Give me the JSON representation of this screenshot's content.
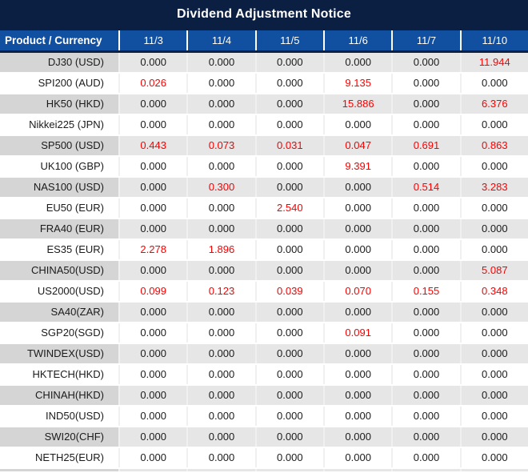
{
  "title": "Dividend Adjustment Notice",
  "table": {
    "header": {
      "product_col": "Product / Currency",
      "dates": [
        "11/3",
        "11/4",
        "11/5",
        "11/6",
        "11/7",
        "11/10"
      ]
    },
    "rows": [
      {
        "label": "DJ30 (USD)",
        "values": [
          "0.000",
          "0.000",
          "0.000",
          "0.000",
          "0.000",
          "11.944"
        ],
        "red_cols": [
          5
        ]
      },
      {
        "label": "SPI200 (AUD)",
        "values": [
          "0.026",
          "0.000",
          "0.000",
          "9.135",
          "0.000",
          "0.000"
        ],
        "red_cols": [
          0,
          3
        ]
      },
      {
        "label": "HK50 (HKD)",
        "values": [
          "0.000",
          "0.000",
          "0.000",
          "15.886",
          "0.000",
          "6.376"
        ],
        "red_cols": [
          3,
          5
        ]
      },
      {
        "label": "Nikkei225 (JPN)",
        "values": [
          "0.000",
          "0.000",
          "0.000",
          "0.000",
          "0.000",
          "0.000"
        ],
        "red_cols": []
      },
      {
        "label": "SP500 (USD)",
        "values": [
          "0.443",
          "0.073",
          "0.031",
          "0.047",
          "0.691",
          "0.863"
        ],
        "red_cols": [
          0,
          1,
          2,
          3,
          4,
          5
        ]
      },
      {
        "label": "UK100 (GBP)",
        "values": [
          "0.000",
          "0.000",
          "0.000",
          "9.391",
          "0.000",
          "0.000"
        ],
        "red_cols": [
          3
        ]
      },
      {
        "label": "NAS100 (USD)",
        "values": [
          "0.000",
          "0.300",
          "0.000",
          "0.000",
          "0.514",
          "3.283"
        ],
        "red_cols": [
          1,
          4,
          5
        ]
      },
      {
        "label": "EU50 (EUR)",
        "values": [
          "0.000",
          "0.000",
          "2.540",
          "0.000",
          "0.000",
          "0.000"
        ],
        "red_cols": [
          2
        ]
      },
      {
        "label": "FRA40 (EUR)",
        "values": [
          "0.000",
          "0.000",
          "0.000",
          "0.000",
          "0.000",
          "0.000"
        ],
        "red_cols": []
      },
      {
        "label": "ES35 (EUR)",
        "values": [
          "2.278",
          "1.896",
          "0.000",
          "0.000",
          "0.000",
          "0.000"
        ],
        "red_cols": [
          0,
          1
        ]
      },
      {
        "label": "CHINA50(USD)",
        "values": [
          "0.000",
          "0.000",
          "0.000",
          "0.000",
          "0.000",
          "5.087"
        ],
        "red_cols": [
          5
        ]
      },
      {
        "label": "US2000(USD)",
        "values": [
          "0.099",
          "0.123",
          "0.039",
          "0.070",
          "0.155",
          "0.348"
        ],
        "red_cols": [
          0,
          1,
          2,
          3,
          4,
          5
        ]
      },
      {
        "label": "SA40(ZAR)",
        "values": [
          "0.000",
          "0.000",
          "0.000",
          "0.000",
          "0.000",
          "0.000"
        ],
        "red_cols": []
      },
      {
        "label": "SGP20(SGD)",
        "values": [
          "0.000",
          "0.000",
          "0.000",
          "0.091",
          "0.000",
          "0.000"
        ],
        "red_cols": [
          3
        ]
      },
      {
        "label": "TWINDEX(USD)",
        "values": [
          "0.000",
          "0.000",
          "0.000",
          "0.000",
          "0.000",
          "0.000"
        ],
        "red_cols": []
      },
      {
        "label": "HKTECH(HKD)",
        "values": [
          "0.000",
          "0.000",
          "0.000",
          "0.000",
          "0.000",
          "0.000"
        ],
        "red_cols": []
      },
      {
        "label": "CHINAH(HKD)",
        "values": [
          "0.000",
          "0.000",
          "0.000",
          "0.000",
          "0.000",
          "0.000"
        ],
        "red_cols": []
      },
      {
        "label": "IND50(USD)",
        "values": [
          "0.000",
          "0.000",
          "0.000",
          "0.000",
          "0.000",
          "0.000"
        ],
        "red_cols": []
      },
      {
        "label": "SWI20(CHF)",
        "values": [
          "0.000",
          "0.000",
          "0.000",
          "0.000",
          "0.000",
          "0.000"
        ],
        "red_cols": []
      },
      {
        "label": "NETH25(EUR)",
        "values": [
          "0.000",
          "0.000",
          "0.000",
          "0.000",
          "0.000",
          "0.000"
        ],
        "red_cols": []
      }
    ]
  },
  "colors": {
    "title_bg": "#0b1f42",
    "header_bg": "#1150a0",
    "header_text": "#ffffff",
    "label_alt_bg": "#d5d5d5",
    "value_alt_bg": "#e6e6e6",
    "separator": "#f0f0f0",
    "text": "#1b1b1b",
    "highlight_red": "#fb0000"
  }
}
